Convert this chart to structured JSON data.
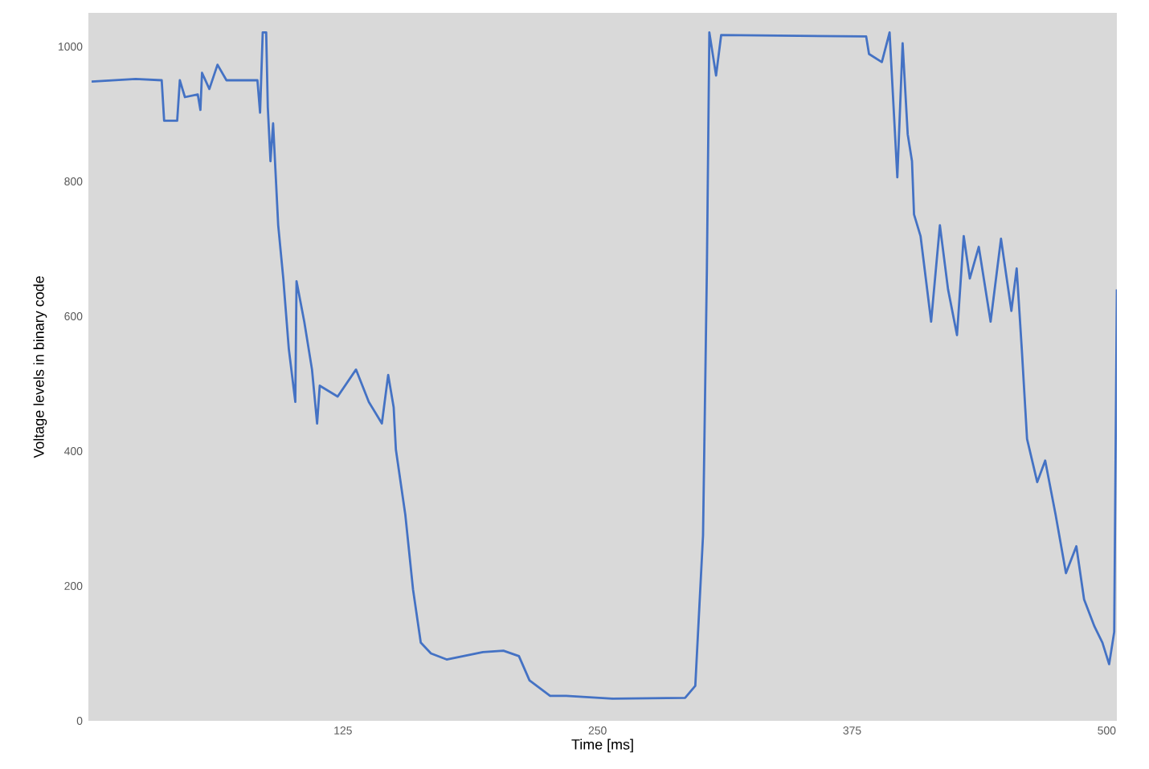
{
  "chart_data": {
    "type": "line",
    "xlabel": "Time [ms]",
    "ylabel": "Voltage levels in binary code",
    "xlim": [
      0,
      505
    ],
    "ylim": [
      0,
      1050
    ],
    "xticks": [
      125,
      250,
      375,
      500
    ],
    "yticks": [
      0,
      200,
      400,
      600,
      800,
      1000
    ],
    "grid": false,
    "legend": false,
    "series": [
      {
        "color": "#4472c4",
        "x": [
          1.6,
          23.2,
          36,
          37.2,
          43.6,
          44.9,
          47.4,
          53.7,
          55,
          55.8,
          59.4,
          63.4,
          67.8,
          83,
          84.3,
          85.6,
          87.3,
          88.1,
          89.4,
          90.7,
          93.2,
          95.7,
          98.4,
          101.6,
          102.2,
          106,
          109.8,
          112.3,
          113.6,
          122.4,
          131.4,
          137.7,
          144.1,
          147.2,
          149.9,
          151,
          155.6,
          159.4,
          163.2,
          168.2,
          175.9,
          193.7,
          203.8,
          211.4,
          216.6,
          226.7,
          234.6,
          257.3,
          293,
          298,
          301.8,
          303.7,
          304.9,
          308.2,
          310.7,
          381.9,
          383.3,
          389.6,
          393.4,
          397.2,
          399.8,
          402.3,
          404.4,
          405.4,
          408.6,
          413.8,
          418.1,
          422.1,
          426.5,
          429.8,
          432.8,
          437.2,
          443,
          448.1,
          453.2,
          455.8,
          458.3,
          460.9,
          465.9,
          469.8,
          474.9,
          480,
          485.1,
          488.9,
          494,
          497.9,
          501.2,
          503.7,
          505
        ],
        "values": [
          948,
          952,
          950,
          890,
          890,
          950,
          925,
          929,
          906,
          961,
          937,
          973,
          950,
          950,
          902,
          1021,
          1021,
          910,
          830,
          886,
          735,
          656,
          552,
          473,
          652,
          592,
          521,
          441,
          497,
          481,
          521,
          473,
          441,
          513,
          465,
          402,
          306,
          195,
          116,
          100,
          91,
          102,
          104,
          96,
          60,
          37,
          37,
          33,
          34,
          52,
          275,
          671,
          1021,
          957,
          1017,
          1015,
          989,
          977,
          1021,
          806,
          1005,
          870,
          830,
          751,
          719,
          592,
          735,
          640,
          572,
          719,
          656,
          703,
          592,
          715,
          608,
          671,
          552,
          418,
          354,
          386,
          306,
          219,
          259,
          180,
          140,
          116,
          84,
          132,
          640
        ]
      }
    ]
  }
}
